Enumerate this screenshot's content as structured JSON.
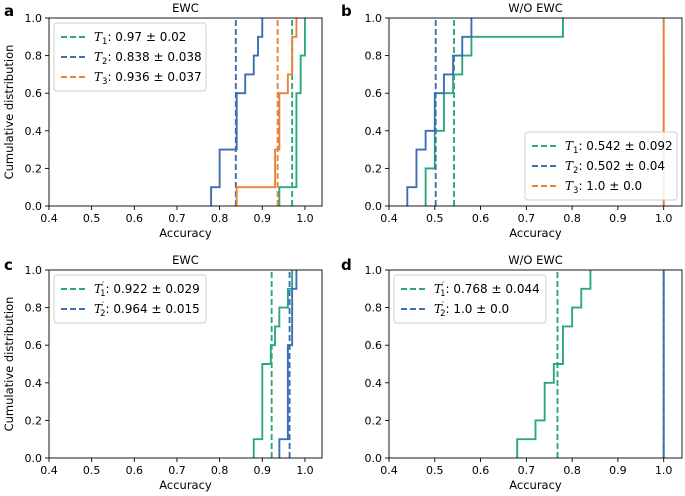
{
  "colors": {
    "green": "#2ca87f",
    "blue": "#3a6fb4",
    "orange": "#e98239"
  },
  "chart_data": [
    {
      "id": "a",
      "type": "line",
      "panel_label": "a",
      "title": "EWC",
      "xlabel": "Accuracy",
      "ylabel": "Cumulative distribution",
      "xlim": [
        0.4,
        1.04
      ],
      "ylim": [
        0,
        1
      ],
      "xticks": [
        "0.4",
        "0.5",
        "0.6",
        "0.7",
        "0.8",
        "0.9",
        "1.0"
      ],
      "yticks": [
        "0.0",
        "0.2",
        "0.4",
        "0.6",
        "0.8",
        "1.0"
      ],
      "legend_position": "upper-left",
      "series": [
        {
          "sym": "T",
          "sub": "1",
          "prime": "",
          "rest": ": 0.97 ± 0.02",
          "color": "green",
          "mean": 0.97,
          "cdf_x": [
            0.94,
            0.98,
            0.99,
            1.0
          ],
          "cdf_y": [
            0.1,
            0.6,
            0.8,
            1.0
          ]
        },
        {
          "sym": "T",
          "sub": "2",
          "prime": "",
          "rest": ": 0.838 ± 0.038",
          "color": "blue",
          "mean": 0.838,
          "cdf_x": [
            0.78,
            0.8,
            0.84,
            0.86,
            0.88,
            0.89,
            0.9
          ],
          "cdf_y": [
            0.1,
            0.3,
            0.6,
            0.7,
            0.8,
            0.9,
            1.0
          ]
        },
        {
          "sym": "T",
          "sub": "3",
          "prime": "",
          "rest": ": 0.936 ± 0.037",
          "color": "orange",
          "mean": 0.936,
          "cdf_x": [
            0.84,
            0.93,
            0.94,
            0.96,
            0.97,
            0.98
          ],
          "cdf_y": [
            0.1,
            0.3,
            0.6,
            0.7,
            0.9,
            1.0
          ]
        }
      ]
    },
    {
      "id": "b",
      "type": "line",
      "panel_label": "b",
      "title": "W/O EWC",
      "xlabel": "Accuracy",
      "ylabel": "",
      "xlim": [
        0.4,
        1.04
      ],
      "ylim": [
        0,
        1
      ],
      "xticks": [
        "0.4",
        "0.5",
        "0.6",
        "0.7",
        "0.8",
        "0.9",
        "1.0"
      ],
      "yticks": [
        "0.0",
        "0.2",
        "0.4",
        "0.6",
        "0.8",
        "1.0"
      ],
      "legend_position": "lower-right",
      "series": [
        {
          "sym": "T",
          "sub": "1",
          "prime": "",
          "rest": ": 0.542 ± 0.092",
          "color": "green",
          "mean": 0.542,
          "cdf_x": [
            0.48,
            0.5,
            0.52,
            0.54,
            0.56,
            0.58,
            0.78
          ],
          "cdf_y": [
            0.2,
            0.4,
            0.6,
            0.7,
            0.8,
            0.9,
            1.0
          ]
        },
        {
          "sym": "T",
          "sub": "2",
          "prime": "",
          "rest": ": 0.502 ± 0.04",
          "color": "blue",
          "mean": 0.502,
          "cdf_x": [
            0.44,
            0.46,
            0.48,
            0.5,
            0.52,
            0.54,
            0.56,
            0.58
          ],
          "cdf_y": [
            0.1,
            0.3,
            0.4,
            0.6,
            0.7,
            0.8,
            0.9,
            1.0
          ]
        },
        {
          "sym": "T",
          "sub": "3",
          "prime": "",
          "rest": ": 1.0 ± 0.0",
          "color": "orange",
          "mean": 1.0,
          "cdf_x": [
            1.0
          ],
          "cdf_y": [
            1.0
          ]
        }
      ]
    },
    {
      "id": "c",
      "type": "line",
      "panel_label": "c",
      "title": "EWC",
      "xlabel": "Accuracy",
      "ylabel": "Cumulative distribution",
      "xlim": [
        0.4,
        1.04
      ],
      "ylim": [
        0,
        1
      ],
      "xticks": [
        "0.4",
        "0.5",
        "0.6",
        "0.7",
        "0.8",
        "0.9",
        "1.0"
      ],
      "yticks": [
        "0.0",
        "0.2",
        "0.4",
        "0.6",
        "0.8",
        "1.0"
      ],
      "legend_position": "upper-left",
      "series": [
        {
          "sym": "T",
          "sub": "1",
          "prime": "′",
          "rest": ": 0.922 ± 0.029",
          "color": "green",
          "mean": 0.922,
          "cdf_x": [
            0.88,
            0.9,
            0.92,
            0.93,
            0.94,
            0.96,
            0.97
          ],
          "cdf_y": [
            0.1,
            0.5,
            0.6,
            0.7,
            0.8,
            0.9,
            1.0
          ]
        },
        {
          "sym": "T",
          "sub": "2",
          "prime": "′",
          "rest": ": 0.964 ± 0.015",
          "color": "blue",
          "mean": 0.964,
          "cdf_x": [
            0.94,
            0.96,
            0.97,
            0.98
          ],
          "cdf_y": [
            0.1,
            0.6,
            0.9,
            1.0
          ]
        }
      ]
    },
    {
      "id": "d",
      "type": "line",
      "panel_label": "d",
      "title": "W/O EWC",
      "xlabel": "Accuracy",
      "ylabel": "",
      "xlim": [
        0.4,
        1.04
      ],
      "ylim": [
        0,
        1
      ],
      "xticks": [
        "0.4",
        "0.5",
        "0.6",
        "0.7",
        "0.8",
        "0.9",
        "1.0"
      ],
      "yticks": [
        "0.0",
        "0.2",
        "0.4",
        "0.6",
        "0.8",
        "1.0"
      ],
      "legend_position": "upper-left",
      "series": [
        {
          "sym": "T",
          "sub": "1",
          "prime": "′",
          "rest": ": 0.768 ± 0.044",
          "color": "green",
          "mean": 0.768,
          "cdf_x": [
            0.68,
            0.72,
            0.74,
            0.76,
            0.78,
            0.8,
            0.82,
            0.84
          ],
          "cdf_y": [
            0.1,
            0.2,
            0.4,
            0.5,
            0.7,
            0.8,
            0.9,
            1.0
          ]
        },
        {
          "sym": "T",
          "sub": "2",
          "prime": "′",
          "rest": ": 1.0 ± 0.0",
          "color": "blue",
          "mean": 1.0,
          "cdf_x": [
            1.0
          ],
          "cdf_y": [
            1.0
          ]
        }
      ]
    }
  ]
}
